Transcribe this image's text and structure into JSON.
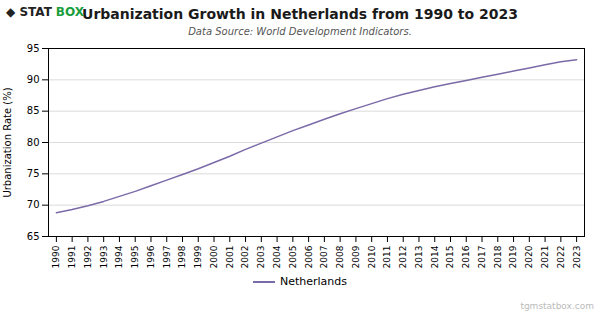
{
  "chart_data": {
    "type": "line",
    "title": "Urbanization Growth in Netherlands from 1990 to 2023",
    "subtitle": "Data Source: World Development Indicators.",
    "ylabel": "Urbanization Rate (%)",
    "x": [
      1990,
      1991,
      1992,
      1993,
      1994,
      1995,
      1996,
      1997,
      1998,
      1999,
      2000,
      2001,
      2002,
      2003,
      2004,
      2005,
      2006,
      2007,
      2008,
      2009,
      2010,
      2011,
      2012,
      2013,
      2014,
      2015,
      2016,
      2017,
      2018,
      2019,
      2020,
      2021,
      2022,
      2023
    ],
    "series": [
      {
        "name": "Netherlands",
        "color": "#7b6aa8",
        "values": [
          68.8,
          69.3,
          69.9,
          70.6,
          71.4,
          72.2,
          73.1,
          74.0,
          74.9,
          75.8,
          76.8,
          77.8,
          78.9,
          79.9,
          80.9,
          81.9,
          82.8,
          83.7,
          84.6,
          85.4,
          86.2,
          87.0,
          87.7,
          88.3,
          88.9,
          89.4,
          89.9,
          90.4,
          90.9,
          91.4,
          91.9,
          92.4,
          92.9,
          93.2
        ]
      }
    ],
    "xlim": [
      1989.5,
      2023.5
    ],
    "xticks": [
      1990,
      1991,
      1992,
      1993,
      1994,
      1995,
      1996,
      1997,
      1998,
      1999,
      2000,
      2001,
      2002,
      2003,
      2004,
      2005,
      2006,
      2007,
      2008,
      2009,
      2010,
      2011,
      2012,
      2013,
      2014,
      2015,
      2016,
      2017,
      2018,
      2019,
      2020,
      2021,
      2022,
      2023
    ],
    "ylim": [
      65,
      95
    ],
    "yticks": [
      65,
      70,
      75,
      80,
      85,
      90,
      95
    ],
    "grid": true,
    "legend": "bottom",
    "annotations": [
      {
        "text": "◆ STAT",
        "color": "#222222"
      },
      {
        "text": "BOX",
        "color": "#1a9e3f"
      },
      {
        "text": "tgmstatbox.com",
        "color": "#bbbbbb"
      }
    ]
  }
}
